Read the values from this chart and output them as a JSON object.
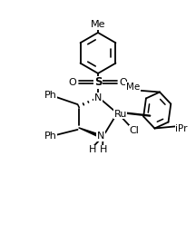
{
  "figsize": [
    2.16,
    2.58
  ],
  "dpi": 100,
  "bg_color": "white",
  "lw": 1.3,
  "color": "black",
  "font_size": 7.5,
  "xlim": [
    0,
    10
  ],
  "ylim": [
    0,
    12
  ]
}
